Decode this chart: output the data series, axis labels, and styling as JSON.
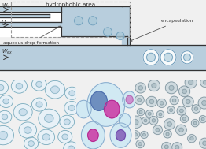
{
  "bg_color": "#f0f0f0",
  "schematic_bg": "#f0f0f0",
  "chan_fill": "#b8cedd",
  "chan_border": "#333333",
  "white_fill": "#ffffff",
  "dashed_color": "#999999",
  "drop_fill": "#a8c8d8",
  "drop_edge": "#6898b8",
  "emulsion_outer_fill": "#ffffff",
  "emulsion_outer_edge": "#6898b8",
  "emulsion_inner_fill": "#a8c8d8",
  "emulsion_inner_edge": "#6898b8",
  "text_color": "#333333",
  "arrow_color": "#555555",
  "hydrophobic_text": "hydrophobic area",
  "aqueous_text": "aqueous drop formation",
  "encapsulation_text": "encapsulation",
  "panel1_bg": "#c8d8e0",
  "panel2_bg": "#dde8ee",
  "panel3_bg": "#b0c0c8",
  "drop1_fill": "#e8f2f8",
  "drop1_edge": "#7aaabb",
  "drop1_inner": "#c8dce8",
  "blue_fill": "#8899bb",
  "magenta_fill": "#cc44aa",
  "purple_fill": "#9955bb"
}
